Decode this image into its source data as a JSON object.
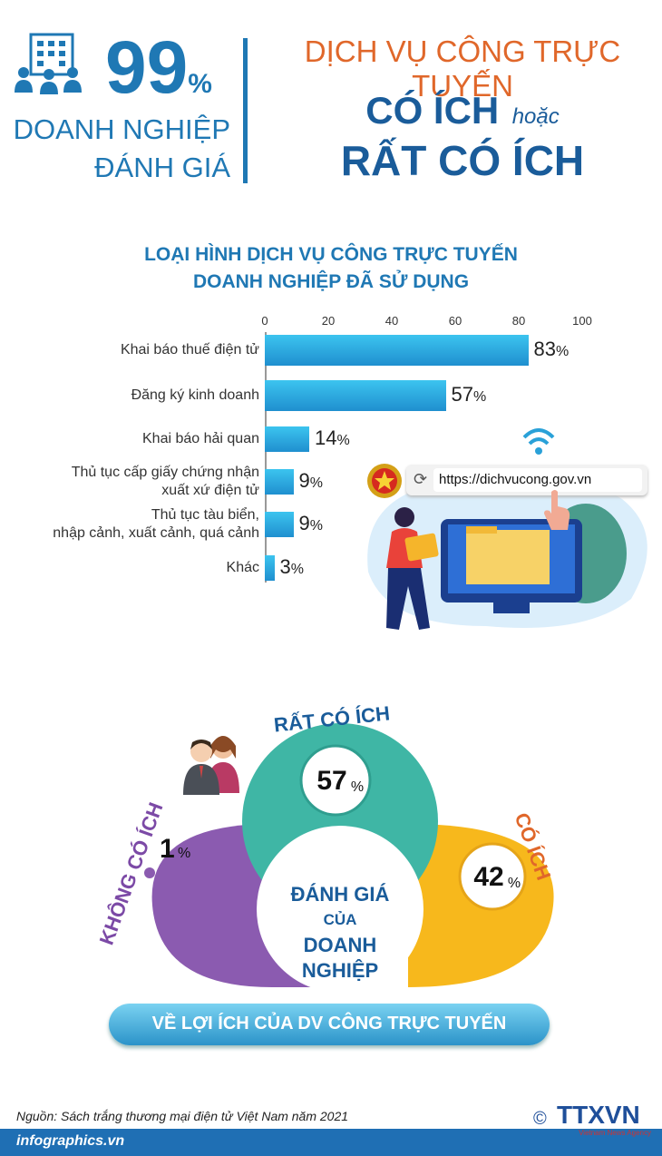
{
  "header": {
    "stat_value": "99",
    "stat_unit": "%",
    "stat_label_line1": "DOANH NGHIỆP",
    "stat_label_line2": "ĐÁNH GIÁ",
    "headline_line1": "DỊCH VỤ CÔNG TRỰC TUYẾN",
    "headline_useful": "CÓ ÍCH",
    "headline_or": "hoặc",
    "headline_very_useful": "RẤT CÓ ÍCH"
  },
  "bar_section": {
    "title_line1": "LOẠI HÌNH DỊCH VỤ CÔNG TRỰC TUYẾN",
    "title_line2": "DOANH NGHIỆP ĐÃ SỬ DỤNG",
    "url": "https://dichvucong.gov.vn"
  },
  "rating_section": {
    "center_line1": "ĐÁNH GIÁ",
    "center_line2": "CỦA",
    "center_line3": "DOANH",
    "center_line4": "NGHIỆP",
    "banner": "VỀ LỢI ÍCH CỦA DV CÔNG TRỰC TUYẾN"
  },
  "footer": {
    "source": "Nguồn: Sách trắng thương mại điện tử Việt Nam năm 2021",
    "site": "infographics.vn",
    "copyright": "©",
    "agency_logo": "TTXVN",
    "agency_sub": "Vietnam News Agency"
  },
  "colors": {
    "very_useful": "#3fb6a5",
    "useful": "#f7b81c",
    "not_useful": "#8b5bb0",
    "bar": "#1f8fcf"
  },
  "chart_data": [
    {
      "type": "bar",
      "orientation": "horizontal",
      "title": "LOẠI HÌNH DỊCH VỤ CÔNG TRỰC TUYẾN DOANH NGHIỆP ĐÃ SỬ DỤNG",
      "categories": [
        "Khai báo thuế điện tử",
        "Đăng ký kinh doanh",
        "Khai báo hải quan",
        "Thủ tục cấp giấy chứng nhận xuất xứ điện tử",
        "Thủ tục tàu biển, nhập cảnh, xuất cảnh, quá cảnh",
        "Khác"
      ],
      "values": [
        83,
        57,
        14,
        9,
        9,
        3
      ],
      "unit": "%",
      "xlim": [
        0,
        100
      ],
      "ticks": [
        0,
        20,
        40,
        60,
        80,
        100
      ],
      "grid": false
    },
    {
      "type": "pie",
      "labels": [
        "RẤT CÓ ÍCH",
        "CÓ ÍCH",
        "KHÔNG CÓ ÍCH"
      ],
      "values": [
        57,
        42,
        1
      ],
      "unit": "%"
    }
  ]
}
